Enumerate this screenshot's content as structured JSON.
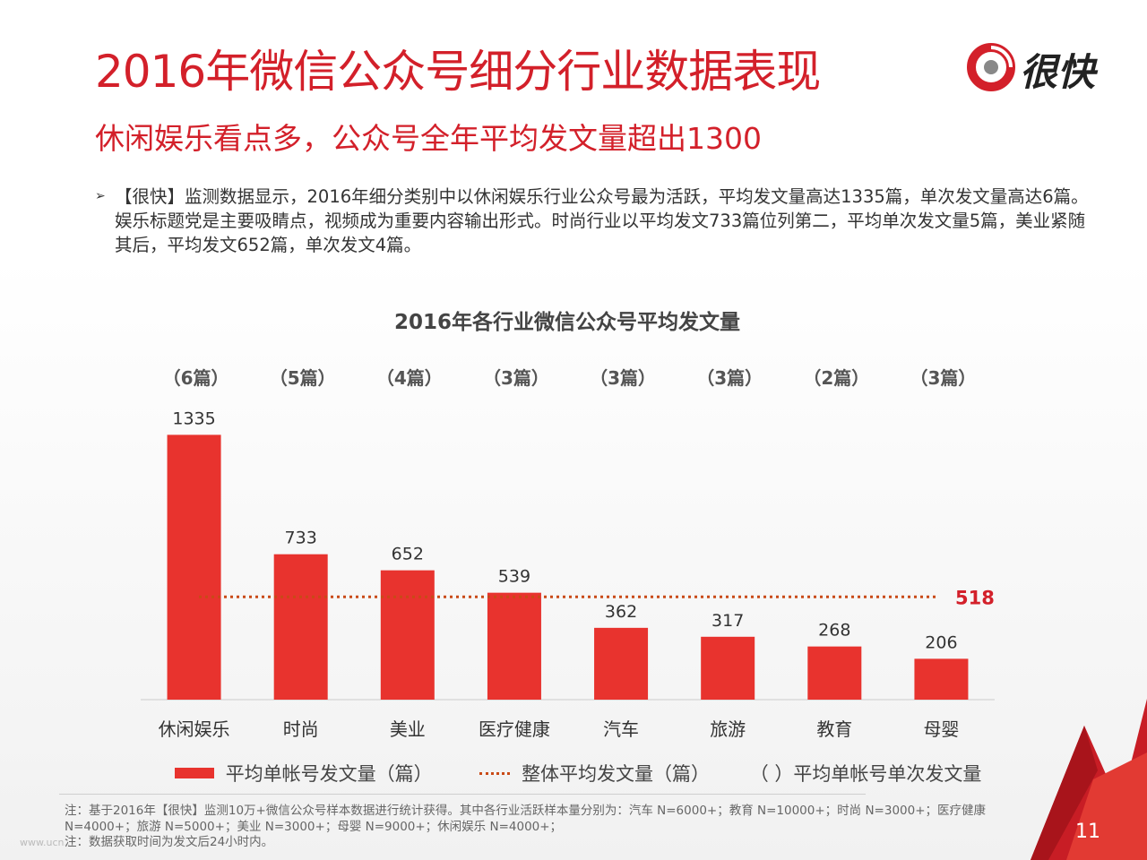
{
  "header": {
    "title": "2016年微信公众号细分行业数据表现",
    "subtitle": "休闲娱乐看点多，公众号全年平均发文量超出1300",
    "logo_text": "很快",
    "brand_color": "#d3202a"
  },
  "bullet": {
    "marker": "➢",
    "text": "【很快】监测数据显示，2016年细分类别中以休闲娱乐行业公众号最为活跃，平均发文量高达1335篇，单次发文量高达6篇。娱乐标题党是主要吸睛点，视频成为重要内容输出形式。时尚行业以平均发文733篇位列第二，平均单次发文量5篇，美业紧随其后，平均发文652篇，单次发文4篇。"
  },
  "chart_data": {
    "type": "bar",
    "title": "2016年各行业微信公众号平均发文量",
    "categories": [
      "休闲娱乐",
      "时尚",
      "美业",
      "医疗健康",
      "汽车",
      "旅游",
      "教育",
      "母婴"
    ],
    "series": [
      {
        "name": "平均单帐号发文量（篇）",
        "values": [
          1335,
          733,
          652,
          539,
          362,
          317,
          268,
          206
        ],
        "color": "#e8332e"
      }
    ],
    "per_post_labels": [
      "（6篇）",
      "（5篇）",
      "（4篇）",
      "（3篇）",
      "（3篇）",
      "（3篇）",
      "（2篇）",
      "（3篇）"
    ],
    "reference_line": {
      "name": "整体平均发文量（篇）",
      "value": 518,
      "color": "#c94a17"
    },
    "ylim": [
      0,
      1400
    ],
    "grid": false,
    "legend_position": "bottom"
  },
  "legend": {
    "bar_label": "平均单帐号发文量（篇）",
    "line_label": "整体平均发文量（篇）",
    "paren_label": "（ ）平均单帐号单次发文量"
  },
  "footer": {
    "note": "注：基于2016年【很快】监测10万+微信公众号样本数据进行统计获得。其中各行业活跃样本量分别为：汽车 N=6000+；教育 N=10000+；时尚 N=3000+；医疗健康 N=4000+；旅游 N=5000+；美业 N=3000+；母婴 N=9000+；休闲娱乐 N=4000+；",
    "note2": "注：数据获取时间为发文后24小时内。",
    "watermark": "www.ucn...",
    "page_number": "11"
  }
}
